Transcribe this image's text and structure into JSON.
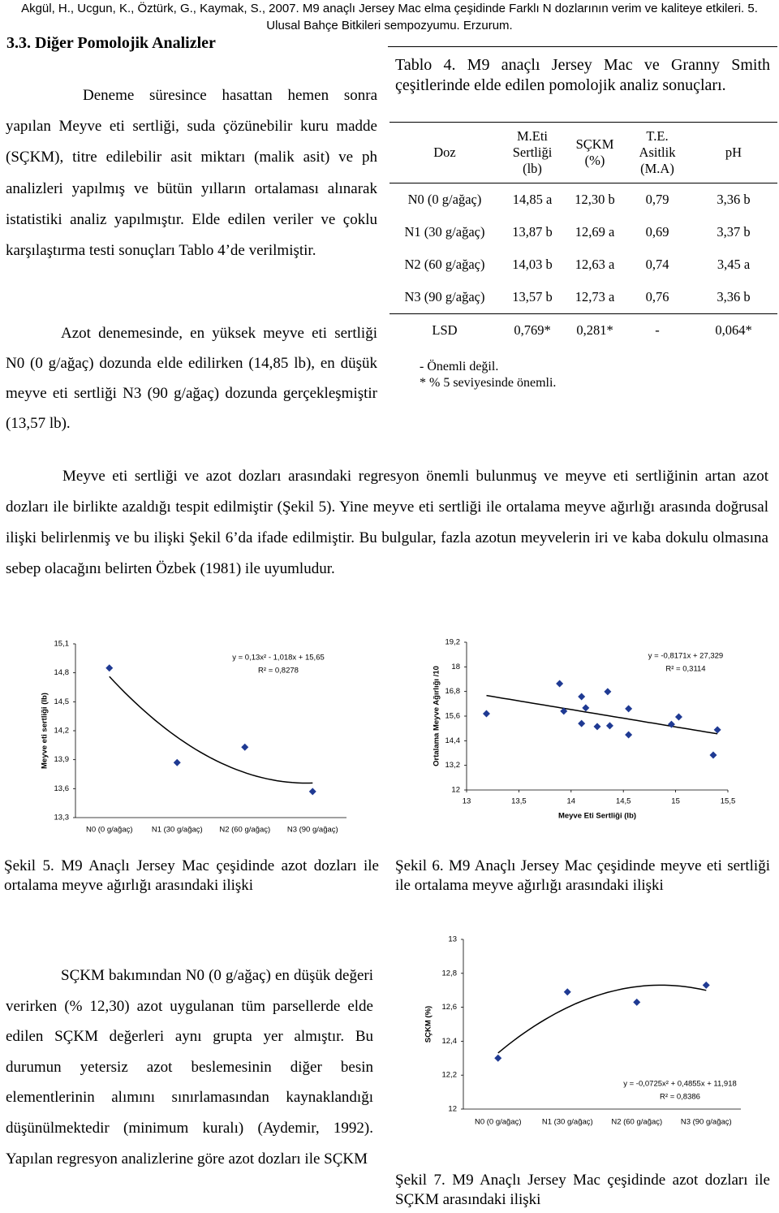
{
  "header": "Akgül, H., Ucgun, K., Öztürk, G., Kaymak, S., 2007. M9 anaçlı Jersey Mac elma çeşidinde Farklı N dozlarının verim ve kaliteye etkileri. 5. Ulusal Bahçe Bitkileri sempozyumu. Erzurum.",
  "section_title": "3.3. Diğer Pomolojik Analizler",
  "paragraphs": [
    "Deneme süresince hasattan hemen sonra yapılan Meyve eti sertliği, suda çözünebilir kuru madde (SÇKM), titre edilebilir asit miktarı (malik asit) ve ph analizleri yapılmış ve bütün yılların ortalaması alınarak istatistiki analiz yapılmıştır. Elde edilen veriler ve çoklu karşılaştırma testi sonuçları Tablo 4’de verilmiştir.",
    "Azot denemesinde, en yüksek meyve eti sertliği N0 (0 g/ağaç) dozunda elde edilirken (14,85 lb), en düşük meyve eti sertliği N3 (90 g/ağaç) dozunda gerçekleşmiştir (13,57 lb).",
    "Meyve eti sertliği ve azot dozları arasındaki regresyon önemli bulunmuş ve meyve eti sertliğinin artan azot dozları ile birlikte azaldığı tespit edilmiştir (Şekil 5). Yine meyve eti sertliği ile ortalama meyve ağırlığı arasında doğrusal ilişki belirlenmiş ve bu ilişki Şekil 6’da ifade edilmiştir. Bu bulgular, fazla azotun meyvelerin iri ve kaba dokulu olmasına sebep olacağını belirten Özbek (1981) ile uyumludur.",
    "SÇKM bakımından N0 (0 g/ağaç) en düşük değeri verirken (% 12,30) azot uygulanan tüm parsellerde elde edilen SÇKM değerleri aynı grupta yer almıştır. Bu durumun yetersiz azot beslemesinin diğer besin elementlerinin alımını sınırlamasından kaynaklandığı düşünülmektedir (minimum kuralı) (Aydemir, 1992). Yapılan regresyon analizlerine göre azot dozları ile SÇKM"
  ],
  "table": {
    "caption": "Tablo 4. M9 anaçlı Jersey Mac ve Granny Smith çeşitlerinde elde edilen pomolojik analiz sonuçları.",
    "columns": [
      "Doz",
      "M.Eti Sertliği (lb)",
      "SÇKM (%)",
      "T.E. Asitlik (M.A)",
      "pH"
    ],
    "rows": [
      [
        "N0 (0 g/ağaç)",
        "14,85 a",
        "12,30 b",
        "0,79",
        "3,36 b"
      ],
      [
        "N1 (30 g/ağaç)",
        "13,87 b",
        "12,69 a",
        "0,69",
        "3,37 b"
      ],
      [
        "N2 (60 g/ağaç)",
        "14,03 b",
        "12,63 a",
        "0,74",
        "3,45 a"
      ],
      [
        "N3 (90 g/ağaç)",
        "13,57 b",
        "12,73 a",
        "0,76",
        "3,36 b"
      ],
      [
        "LSD",
        "0,769*",
        "0,281*",
        "-",
        "0,064*"
      ]
    ],
    "notes": [
      "- Önemli değil.",
      "* % 5 seviyesinde önemli."
    ]
  },
  "chart_data": [
    {
      "type": "scatter-category",
      "caption": "Şekil 5. M9 Anaçlı Jersey Mac çeşidinde azot dozları ile ortalama meyve ağırlığı arasındaki ilişki",
      "y_label": "Meyve eti sertliği (lb)",
      "categories": [
        "N0 (0 g/ağaç)",
        "N1 (30 g/ağaç)",
        "N2 (60 g/ağaç)",
        "N3 (90 g/ağaç)"
      ],
      "values": [
        14.85,
        13.87,
        14.03,
        13.57
      ],
      "color": "#1f3a93",
      "trendline": "poly2",
      "annotations": [
        "y = 0,13x² - 1,018x + 15,65",
        "R² = 0,8278"
      ],
      "ylim": [
        13.3,
        15.1
      ],
      "yticks": [
        {
          "value": 15.1,
          "label": "15,1"
        },
        {
          "value": 14.8,
          "label": "14,8"
        },
        {
          "value": 14.5,
          "label": "14,5"
        },
        {
          "value": 14.2,
          "label": "14,2"
        },
        {
          "value": 13.9,
          "label": "13,9"
        },
        {
          "value": 13.6,
          "label": "13,6"
        },
        {
          "value": 13.3,
          "label": "13,3"
        }
      ]
    },
    {
      "type": "scatter",
      "caption": "Şekil 6. M9 Anaçlı Jersey Mac çeşidinde meyve eti sertliği ile ortalama meyve ağırlığı arasındaki ilişki",
      "x_label": "Meyve Eti Sertliği (lb)",
      "y_label": "Ortalama Meyve Ağırlığı /10",
      "x": [
        13.19,
        13.89,
        13.93,
        14.1,
        14.14,
        14.1,
        14.25,
        14.35,
        14.37,
        14.55,
        14.55,
        14.96,
        15.03,
        15.4,
        15.36
      ],
      "values": [
        15.72,
        17.18,
        15.84,
        16.55,
        16.0,
        15.24,
        15.09,
        16.79,
        15.13,
        15.96,
        14.69,
        15.2,
        15.56,
        14.93,
        13.7
      ],
      "color": "#1f3a93",
      "trendline": "linear",
      "annotations": [
        "y = -0,8171x + 27,329",
        "R² = 0,3114"
      ],
      "xlim": [
        13,
        15.5
      ],
      "xticks": [
        13,
        {
          "value": 13.5,
          "label": "13,5"
        },
        14,
        {
          "value": 14.5,
          "label": "14,5"
        },
        15,
        {
          "value": 15.5,
          "label": "15,5"
        }
      ],
      "ylim": [
        12,
        19.2
      ],
      "yticks": [
        12,
        {
          "value": 13.2,
          "label": "13,2"
        },
        {
          "value": 14.4,
          "label": "14,4"
        },
        {
          "value": 15.6,
          "label": "15,6"
        },
        {
          "value": 16.8,
          "label": "16,8"
        },
        18,
        {
          "value": 19.2,
          "label": "19,2"
        }
      ]
    },
    {
      "type": "scatter-category",
      "caption": "Şekil 7. M9 Anaçlı Jersey Mac çeşidinde azot dozları ile SÇKM arasındaki ilişki",
      "y_label": "SÇKM (%)",
      "categories": [
        "N0 (0 g/ağaç)",
        "N1 (30 g/ağaç)",
        "N2 (60 g/ağaç)",
        "N3 (90 g/ağaç)"
      ],
      "values": [
        12.3,
        12.69,
        12.63,
        12.73
      ],
      "color": "#1f3a93",
      "trendline": "poly2",
      "annotations": [
        "y = -0,0725x² + 0,4855x + 11,918",
        "R² = 0,8386"
      ],
      "ylim": [
        12,
        13
      ],
      "yticks": [
        12,
        {
          "value": 12.2,
          "label": "12,2"
        },
        {
          "value": 12.4,
          "label": "12,4"
        },
        {
          "value": 12.6,
          "label": "12,6"
        },
        {
          "value": 12.8,
          "label": "12,8"
        },
        13
      ]
    }
  ]
}
